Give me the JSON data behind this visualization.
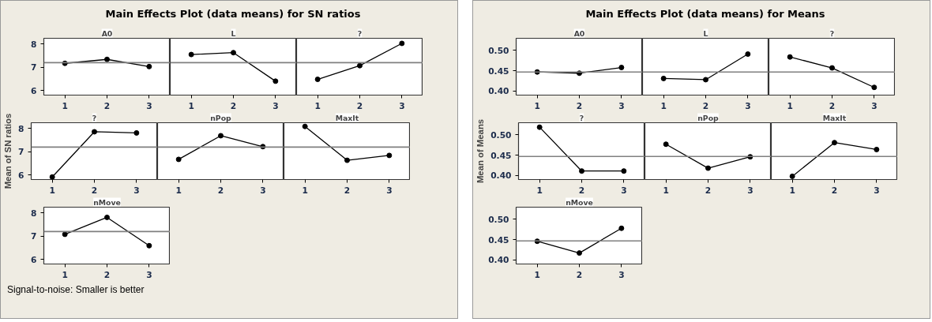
{
  "chart_data": [
    {
      "type": "line",
      "title": "A0",
      "annotations": [
        "Main Effects Plot (data means) for SN ratios"
      ],
      "x": [
        1,
        2,
        3
      ],
      "xlim": [
        0.5,
        3.5
      ],
      "xticks": [
        1,
        2,
        3
      ],
      "ylim": [
        5.8,
        8.25
      ],
      "yticks": [
        6,
        7,
        8
      ],
      "marker": "circle",
      "series": [
        {
          "color": "#000000",
          "values": [
            7.17,
            7.34,
            7.03
          ]
        }
      ],
      "ref_lines": [
        {
          "axis": "y",
          "value": 7.2,
          "color": "#808080"
        }
      ]
    },
    {
      "type": "line",
      "title": "L",
      "x": [
        1,
        2,
        3
      ],
      "xlim": [
        0.5,
        3.5
      ],
      "xticks": [
        1,
        2,
        3
      ],
      "ylim": [
        5.8,
        8.25
      ],
      "yticks": [
        6,
        7,
        8
      ],
      "tick_labels": "x",
      "marker": "circle",
      "series": [
        {
          "color": "#000000",
          "values": [
            7.55,
            7.63,
            6.4
          ]
        }
      ],
      "ref_lines": [
        {
          "axis": "y",
          "value": 7.2,
          "color": "#808080"
        }
      ]
    },
    {
      "type": "line",
      "title": "?",
      "x": [
        1,
        2,
        3
      ],
      "xlim": [
        0.5,
        3.5
      ],
      "xticks": [
        1,
        2,
        3
      ],
      "ylim": [
        5.8,
        8.25
      ],
      "yticks": [
        6,
        7,
        8
      ],
      "tick_labels": "x",
      "marker": "circle",
      "series": [
        {
          "color": "#000000",
          "values": [
            6.48,
            7.07,
            8.03
          ]
        }
      ],
      "ref_lines": [
        {
          "axis": "y",
          "value": 7.2,
          "color": "#808080"
        }
      ]
    },
    {
      "type": "line",
      "title": "?",
      "ylabel": "Mean of SN ratios",
      "x": [
        1,
        2,
        3
      ],
      "xlim": [
        0.5,
        3.5
      ],
      "xticks": [
        1,
        2,
        3
      ],
      "ylim": [
        5.8,
        8.25
      ],
      "yticks": [
        6,
        7,
        8
      ],
      "marker": "circle",
      "series": [
        {
          "color": "#000000",
          "values": [
            5.91,
            7.86,
            7.81
          ]
        }
      ],
      "ref_lines": [
        {
          "axis": "y",
          "value": 7.2,
          "color": "#808080"
        }
      ]
    },
    {
      "type": "line",
      "title": "nPop",
      "x": [
        1,
        2,
        3
      ],
      "xlim": [
        0.5,
        3.5
      ],
      "xticks": [
        1,
        2,
        3
      ],
      "ylim": [
        5.8,
        8.25
      ],
      "yticks": [
        6,
        7,
        8
      ],
      "tick_labels": "x",
      "marker": "circle",
      "series": [
        {
          "color": "#000000",
          "values": [
            6.67,
            7.69,
            7.22
          ]
        }
      ],
      "ref_lines": [
        {
          "axis": "y",
          "value": 7.2,
          "color": "#808080"
        }
      ]
    },
    {
      "type": "line",
      "title": "MaxIt",
      "x": [
        1,
        2,
        3
      ],
      "xlim": [
        0.5,
        3.5
      ],
      "xticks": [
        1,
        2,
        3
      ],
      "ylim": [
        5.8,
        8.25
      ],
      "yticks": [
        6,
        7,
        8
      ],
      "tick_labels": "x",
      "marker": "circle",
      "series": [
        {
          "color": "#000000",
          "values": [
            8.09,
            6.63,
            6.84
          ]
        }
      ],
      "ref_lines": [
        {
          "axis": "y",
          "value": 7.2,
          "color": "#808080"
        }
      ]
    },
    {
      "type": "line",
      "title": "nMove",
      "annotations": [
        "Signal-to-noise: Smaller is better"
      ],
      "x": [
        1,
        2,
        3
      ],
      "xlim": [
        0.5,
        3.5
      ],
      "xticks": [
        1,
        2,
        3
      ],
      "ylim": [
        5.8,
        8.25
      ],
      "yticks": [
        6,
        7,
        8
      ],
      "marker": "circle",
      "series": [
        {
          "color": "#000000",
          "values": [
            7.08,
            7.81,
            6.59
          ]
        }
      ],
      "ref_lines": [
        {
          "axis": "y",
          "value": 7.2,
          "color": "#808080"
        }
      ]
    },
    {
      "type": "line",
      "title": "A0",
      "annotations": [
        "Main Effects Plot (data means) for Means"
      ],
      "x": [
        1,
        2,
        3
      ],
      "xlim": [
        0.5,
        3.5
      ],
      "xticks": [
        1,
        2,
        3
      ],
      "ylim": [
        0.39,
        0.53
      ],
      "yticks": [
        {
          "value": 0.4,
          "label": "0.40"
        },
        {
          "value": 0.45,
          "label": "0.45"
        },
        {
          "value": 0.5,
          "label": "0.50"
        }
      ],
      "marker": "circle",
      "series": [
        {
          "color": "#000000",
          "values": [
            0.447,
            0.444,
            0.458
          ]
        }
      ],
      "ref_lines": [
        {
          "axis": "y",
          "value": 0.447,
          "color": "#808080"
        }
      ]
    },
    {
      "type": "line",
      "title": "L",
      "x": [
        1,
        2,
        3
      ],
      "xlim": [
        0.5,
        3.5
      ],
      "xticks": [
        1,
        2,
        3
      ],
      "ylim": [
        0.39,
        0.53
      ],
      "yticks": [
        0.4,
        0.45,
        0.5
      ],
      "tick_labels": "x",
      "marker": "circle",
      "series": [
        {
          "color": "#000000",
          "values": [
            0.431,
            0.428,
            0.491
          ]
        }
      ],
      "ref_lines": [
        {
          "axis": "y",
          "value": 0.447,
          "color": "#808080"
        }
      ]
    },
    {
      "type": "line",
      "title": "?",
      "x": [
        1,
        2,
        3
      ],
      "xlim": [
        0.5,
        3.5
      ],
      "xticks": [
        1,
        2,
        3
      ],
      "ylim": [
        0.39,
        0.53
      ],
      "yticks": [
        0.4,
        0.45,
        0.5
      ],
      "tick_labels": "x",
      "marker": "circle",
      "series": [
        {
          "color": "#000000",
          "values": [
            0.484,
            0.457,
            0.409
          ]
        }
      ],
      "ref_lines": [
        {
          "axis": "y",
          "value": 0.447,
          "color": "#808080"
        }
      ]
    },
    {
      "type": "line",
      "title": "?",
      "ylabel": "Mean of Means",
      "x": [
        1,
        2,
        3
      ],
      "xlim": [
        0.5,
        3.5
      ],
      "xticks": [
        1,
        2,
        3
      ],
      "ylim": [
        0.39,
        0.53
      ],
      "yticks": [
        {
          "value": 0.4,
          "label": "0.40"
        },
        {
          "value": 0.45,
          "label": "0.45"
        },
        {
          "value": 0.5,
          "label": "0.50"
        }
      ],
      "marker": "circle",
      "series": [
        {
          "color": "#000000",
          "values": [
            0.519,
            0.411,
            0.411
          ]
        }
      ],
      "ref_lines": [
        {
          "axis": "y",
          "value": 0.447,
          "color": "#808080"
        }
      ]
    },
    {
      "type": "line",
      "title": "nPop",
      "x": [
        1,
        2,
        3
      ],
      "xlim": [
        0.5,
        3.5
      ],
      "xticks": [
        1,
        2,
        3
      ],
      "ylim": [
        0.39,
        0.53
      ],
      "yticks": [
        0.4,
        0.45,
        0.5
      ],
      "tick_labels": "x",
      "marker": "circle",
      "series": [
        {
          "color": "#000000",
          "values": [
            0.477,
            0.418,
            0.446
          ]
        }
      ],
      "ref_lines": [
        {
          "axis": "y",
          "value": 0.447,
          "color": "#808080"
        }
      ]
    },
    {
      "type": "line",
      "title": "MaxIt",
      "x": [
        1,
        2,
        3
      ],
      "xlim": [
        0.5,
        3.5
      ],
      "xticks": [
        1,
        2,
        3
      ],
      "ylim": [
        0.39,
        0.53
      ],
      "yticks": [
        0.4,
        0.45,
        0.5
      ],
      "tick_labels": "x",
      "marker": "circle",
      "series": [
        {
          "color": "#000000",
          "values": [
            0.398,
            0.481,
            0.464
          ]
        }
      ],
      "ref_lines": [
        {
          "axis": "y",
          "value": 0.447,
          "color": "#808080"
        }
      ]
    },
    {
      "type": "line",
      "title": "nMove",
      "x": [
        1,
        2,
        3
      ],
      "xlim": [
        0.5,
        3.5
      ],
      "xticks": [
        1,
        2,
        3
      ],
      "ylim": [
        0.39,
        0.53
      ],
      "yticks": [
        {
          "value": 0.4,
          "label": "0.40"
        },
        {
          "value": 0.45,
          "label": "0.45"
        },
        {
          "value": 0.5,
          "label": "0.50"
        }
      ],
      "marker": "circle",
      "series": [
        {
          "color": "#000000",
          "values": [
            0.446,
            0.417,
            0.478
          ]
        }
      ],
      "ref_lines": [
        {
          "axis": "y",
          "value": 0.447,
          "color": "#808080"
        }
      ]
    }
  ]
}
